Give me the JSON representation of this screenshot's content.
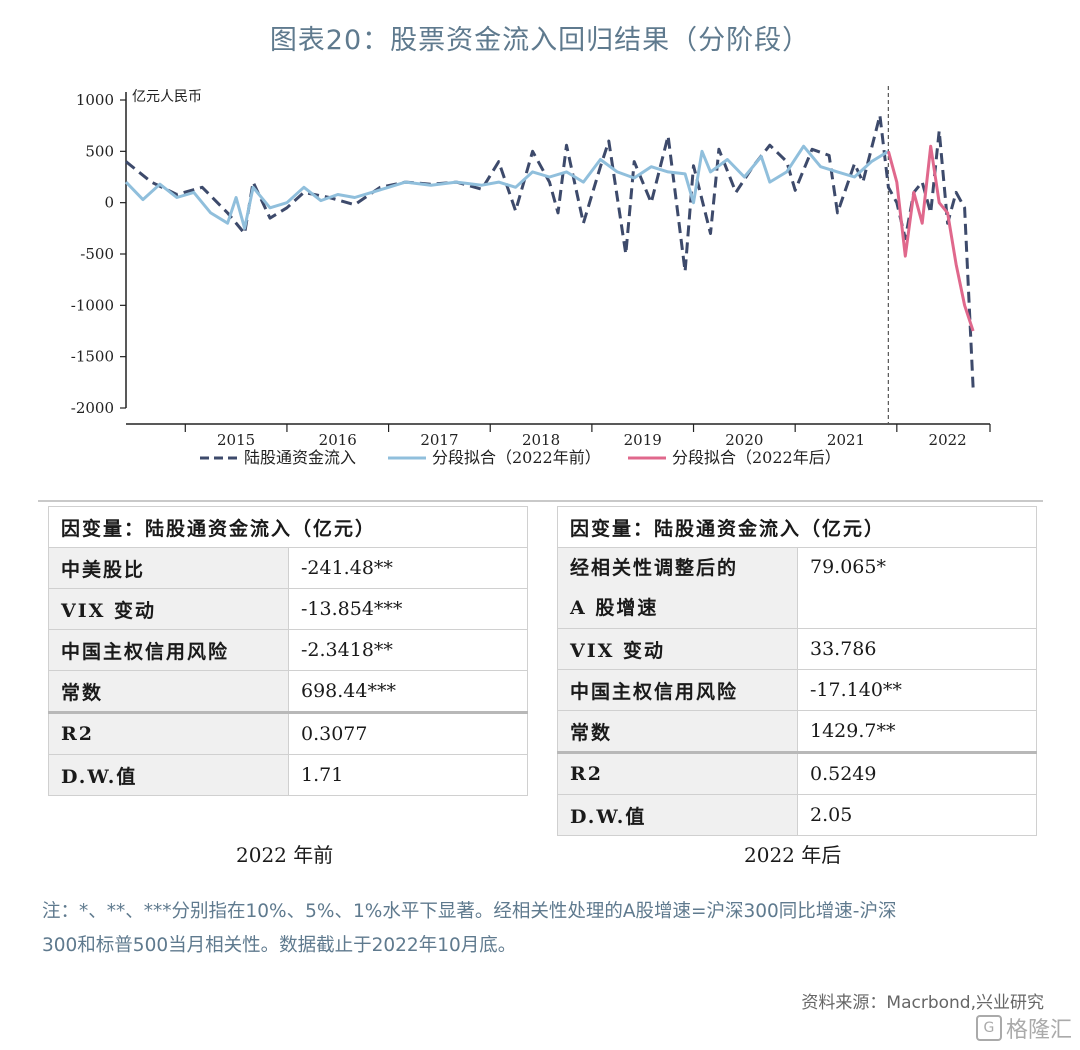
{
  "title": "图表20：股票资金流入回归结果（分阶段）",
  "chart_data": {
    "type": "line",
    "unit_label": "亿元人民币",
    "ylim": [
      -2000,
      1000
    ],
    "yticks": [
      1000,
      500,
      0,
      -500,
      -1000,
      -1500,
      -2000
    ],
    "x_start": "2014-06",
    "x_end": "2022-10",
    "year_labels": [
      "2015",
      "2016",
      "2017",
      "2018",
      "2019",
      "2020",
      "2021",
      "2022"
    ],
    "split_date": "2021-12",
    "legend_position": "bottom",
    "series": [
      {
        "name": "陆股通资金流入",
        "style": "dashed",
        "color": "#3d4a6b",
        "dates": [
          "2014-06",
          "2014-09",
          "2014-12",
          "2015-03",
          "2015-06",
          "2015-08",
          "2015-09",
          "2015-11",
          "2016-01",
          "2016-03",
          "2016-06",
          "2016-09",
          "2016-12",
          "2017-03",
          "2017-06",
          "2017-09",
          "2017-12",
          "2018-02",
          "2018-04",
          "2018-06",
          "2018-08",
          "2018-09",
          "2018-10",
          "2018-12",
          "2019-02",
          "2019-03",
          "2019-05",
          "2019-06",
          "2019-08",
          "2019-10",
          "2019-12",
          "2020-01",
          "2020-03",
          "2020-04",
          "2020-06",
          "2020-08",
          "2020-10",
          "2020-12",
          "2021-01",
          "2021-03",
          "2021-05",
          "2021-06",
          "2021-08",
          "2021-09",
          "2021-11",
          "2021-12",
          "2022-01",
          "2022-02",
          "2022-03",
          "2022-04",
          "2022-05",
          "2022-06",
          "2022-07",
          "2022-08",
          "2022-09",
          "2022-10"
        ],
        "values": [
          400,
          200,
          80,
          150,
          -100,
          -300,
          200,
          -150,
          -50,
          100,
          50,
          -20,
          150,
          200,
          180,
          200,
          130,
          400,
          -80,
          500,
          200,
          -100,
          560,
          -200,
          350,
          600,
          -500,
          400,
          0,
          650,
          -670,
          360,
          -300,
          520,
          100,
          350,
          560,
          400,
          120,
          520,
          460,
          -100,
          380,
          200,
          850,
          150,
          0,
          -350,
          100,
          200,
          -100,
          700,
          -200,
          100,
          -50,
          -1800
        ],
        "cutoff_date": "2022-10"
      },
      {
        "name": "分段拟合（2022年前）",
        "style": "solid",
        "color": "#90bfdc",
        "dates": [
          "2014-06",
          "2014-08",
          "2014-10",
          "2014-12",
          "2015-02",
          "2015-04",
          "2015-06",
          "2015-07",
          "2015-08",
          "2015-09",
          "2015-11",
          "2016-01",
          "2016-03",
          "2016-05",
          "2016-07",
          "2016-09",
          "2016-11",
          "2017-01",
          "2017-03",
          "2017-06",
          "2017-09",
          "2017-12",
          "2018-02",
          "2018-04",
          "2018-06",
          "2018-08",
          "2018-10",
          "2018-12",
          "2019-02",
          "2019-04",
          "2019-06",
          "2019-08",
          "2019-10",
          "2019-12",
          "2020-01",
          "2020-02",
          "2020-03",
          "2020-05",
          "2020-07",
          "2020-09",
          "2020-10",
          "2020-12",
          "2021-02",
          "2021-04",
          "2021-06",
          "2021-08",
          "2021-10",
          "2021-12"
        ],
        "values": [
          200,
          30,
          180,
          50,
          100,
          -100,
          -200,
          50,
          -250,
          150,
          -50,
          0,
          150,
          20,
          80,
          50,
          100,
          150,
          200,
          170,
          200,
          170,
          200,
          150,
          300,
          250,
          300,
          200,
          420,
          300,
          240,
          350,
          300,
          280,
          0,
          500,
          300,
          420,
          250,
          450,
          200,
          300,
          550,
          350,
          300,
          250,
          400,
          500
        ]
      },
      {
        "name": "分段拟合（2022年后）",
        "style": "solid",
        "color": "#e0688c",
        "dates": [
          "2021-12",
          "2022-01",
          "2022-02",
          "2022-03",
          "2022-04",
          "2022-05",
          "2022-06",
          "2022-07",
          "2022-08",
          "2022-09",
          "2022-10"
        ],
        "values": [
          500,
          200,
          -520,
          100,
          -200,
          550,
          0,
          -100,
          -600,
          -1000,
          -1250
        ]
      }
    ]
  },
  "table_before": {
    "header": "因变量：陆股通资金流入（亿元）",
    "rows": [
      {
        "label": "中美股比",
        "value": "-241.48**"
      },
      {
        "label": "VIX 变动",
        "value": "-13.854***"
      },
      {
        "label": "中国主权信用风险",
        "value": "-2.3418**"
      },
      {
        "label": "常数",
        "value": "698.44***"
      },
      {
        "label": "R2",
        "value": "0.3077"
      },
      {
        "label": "D.W.值",
        "value": "1.71"
      }
    ],
    "caption": "2022 年前"
  },
  "table_after": {
    "header": "因变量：陆股通资金流入（亿元）",
    "rows": [
      {
        "label_line1": "经相关性调整后的",
        "label_line2": "A 股增速",
        "value": "79.065*"
      },
      {
        "label": "VIX 变动",
        "value": "33.786"
      },
      {
        "label": "中国主权信用风险",
        "value": "-17.140**"
      },
      {
        "label": "常数",
        "value": "1429.7**"
      },
      {
        "label": "R2",
        "value": "0.5249"
      },
      {
        "label": "D.W.值",
        "value": "2.05"
      }
    ],
    "caption": "2022 年后"
  },
  "note_line1": "注：*、**、***分别指在10%、5%、1%水平下显著。经相关性处理的A股增速=沪深300同比增速-沪深",
  "note_line2": "300和标普500当月相关性。数据截止于2022年10月底。",
  "source": "资料来源：Macrbond,兴业研究",
  "watermark": "格隆汇",
  "colors": {
    "title": "#5f7a8e",
    "note": "#5f7a8e",
    "dashed": "#3d4a6b",
    "before": "#90bfdc",
    "after": "#e0688c"
  }
}
